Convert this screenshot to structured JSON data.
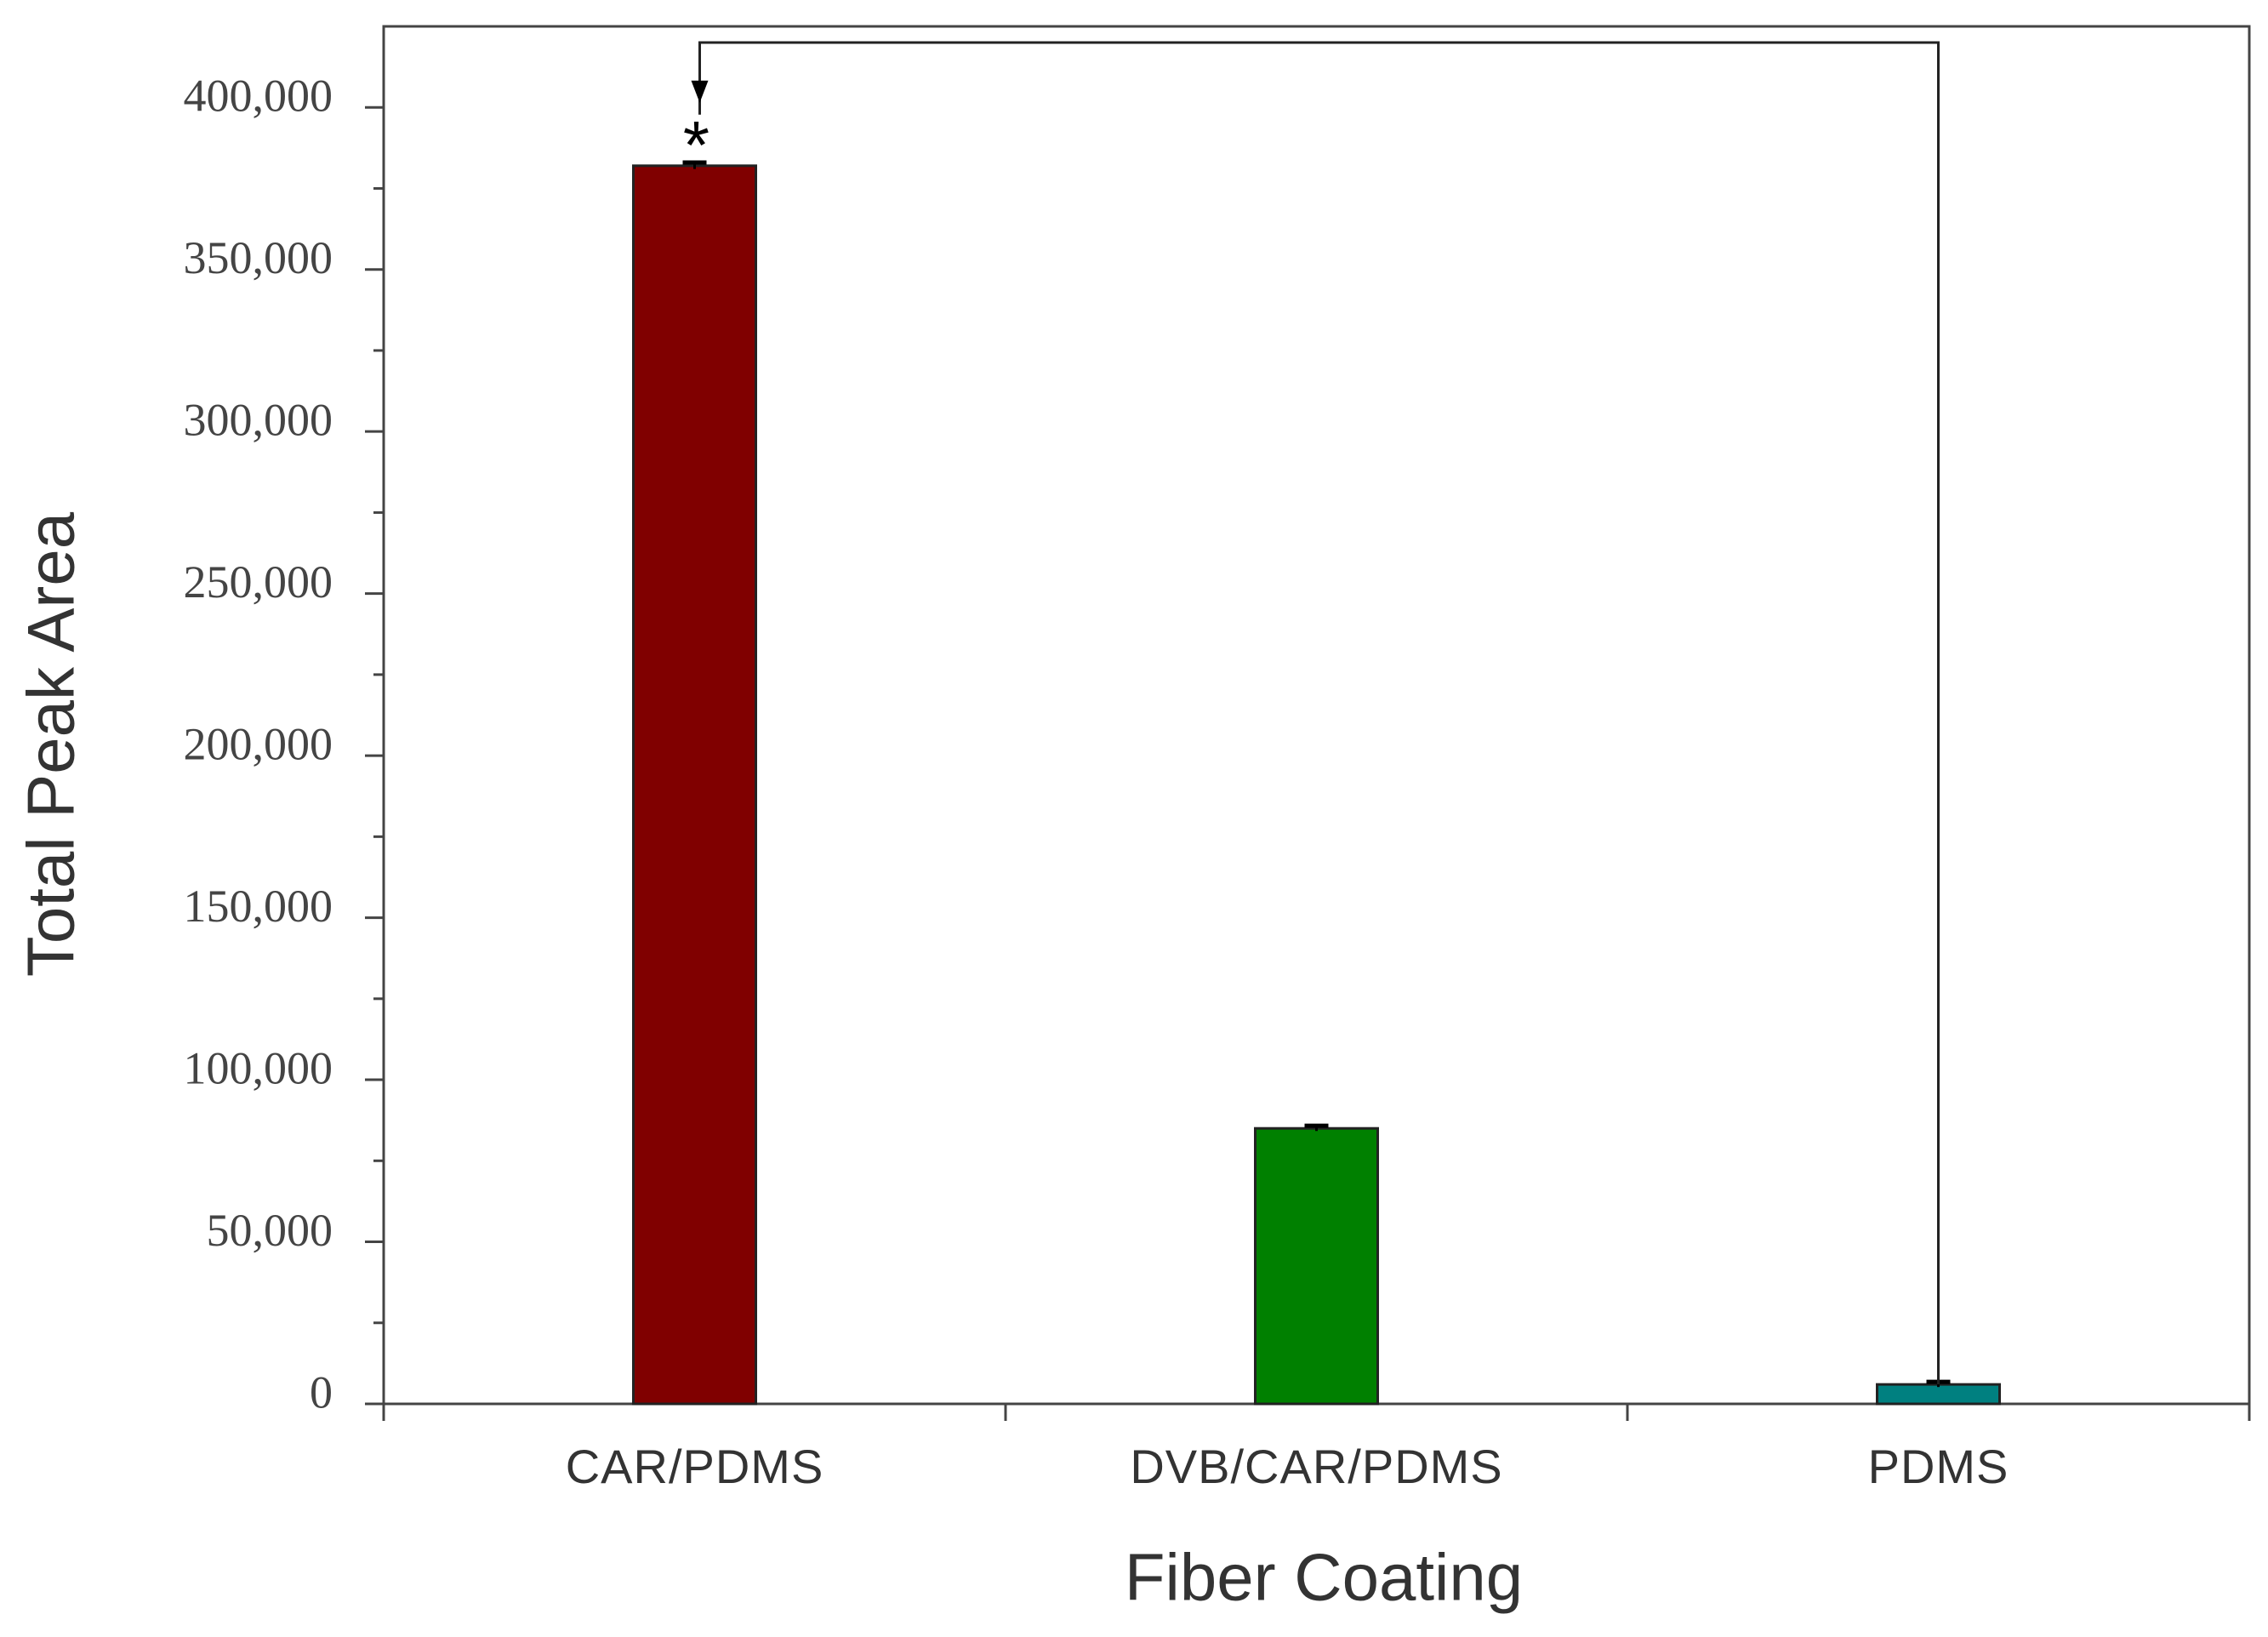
{
  "chart_data": {
    "type": "bar",
    "categories": [
      "CAR/PDMS",
      "DVB/CAR/PDMS",
      "PDMS"
    ],
    "values": [
      382000,
      85000,
      6000
    ],
    "errors": [
      1000,
      800,
      800
    ],
    "colors": [
      "#800000",
      "#008000",
      "#008080"
    ],
    "x_label": "Fiber Coating",
    "y_label": "Total Peak Area",
    "ylim": [
      0,
      425000
    ],
    "yticks": [
      0,
      {
        "value": 50000,
        "label": "50,000"
      },
      {
        "value": 100000,
        "label": "100,000"
      },
      {
        "value": 150000,
        "label": "150,000"
      },
      {
        "value": 200000,
        "label": "200,000"
      },
      {
        "value": 250000,
        "label": "250,000"
      },
      {
        "value": 300000,
        "label": "300,000"
      },
      {
        "value": 350000,
        "label": "350,000"
      },
      {
        "value": 400000,
        "label": "400,000"
      }
    ],
    "annotation": "*"
  }
}
